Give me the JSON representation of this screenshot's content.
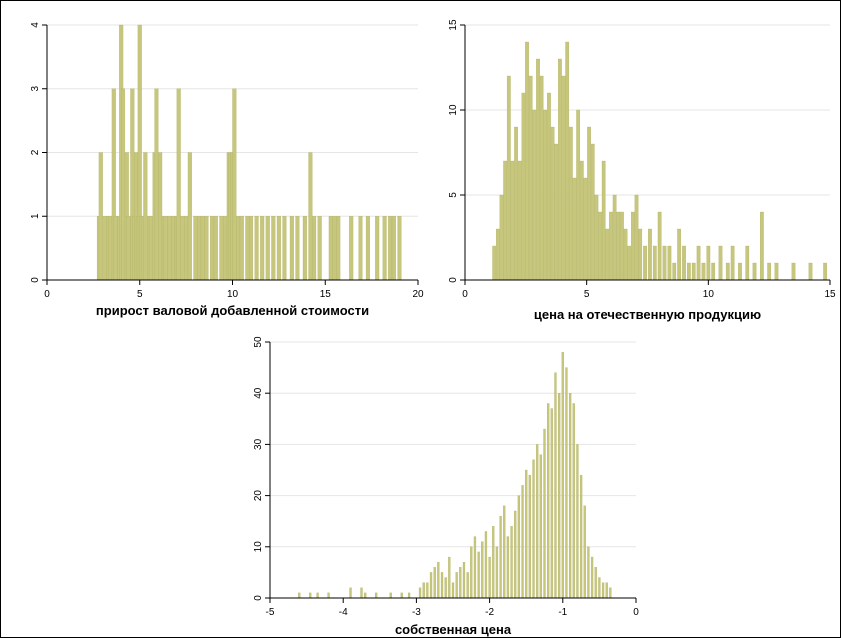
{
  "chart_data": [
    {
      "type": "bar",
      "xlabel": "прирост валовой добавленной стоимости",
      "ylabel": "",
      "xlim": [
        0,
        20
      ],
      "ylim": [
        0,
        4
      ],
      "xticks": [
        "0",
        "5",
        "10",
        "15",
        "20"
      ],
      "yticks": [
        "0",
        "1",
        "2",
        "3",
        "4"
      ],
      "bin_width": 0.2,
      "x": [
        2.8,
        2.9,
        3.1,
        3.3,
        3.4,
        3.6,
        3.7,
        3.9,
        4.0,
        4.1,
        4.3,
        4.4,
        4.6,
        4.7,
        4.8,
        4.9,
        5.0,
        5.1,
        5.2,
        5.3,
        5.5,
        5.6,
        5.8,
        5.9,
        6.1,
        6.3,
        6.4,
        6.6,
        6.8,
        7.0,
        7.1,
        7.3,
        7.5,
        7.7,
        8.0,
        8.2,
        8.4,
        8.6,
        8.9,
        9.1,
        9.4,
        9.6,
        9.8,
        9.9,
        10.0,
        10.1,
        10.3,
        10.5,
        10.8,
        11.0,
        11.3,
        11.6,
        11.9,
        12.2,
        12.5,
        12.8,
        13.2,
        13.5,
        13.9,
        14.2,
        14.4,
        14.7,
        15.3,
        15.5,
        15.7,
        16.4,
        16.9,
        17.3,
        17.8,
        18.2,
        18.5,
        18.7,
        19.0
      ],
      "values": [
        1,
        2,
        1,
        1,
        1,
        3,
        1,
        1,
        4,
        3,
        2,
        1,
        3,
        1,
        2,
        1,
        4,
        1,
        1,
        2,
        1,
        1,
        2,
        3,
        2,
        1,
        1,
        1,
        1,
        1,
        3,
        1,
        1,
        2,
        1,
        1,
        1,
        1,
        1,
        1,
        1,
        1,
        2,
        2,
        2,
        3,
        1,
        1,
        1,
        1,
        1,
        1,
        1,
        1,
        1,
        1,
        1,
        1,
        1,
        2,
        1,
        1,
        1,
        1,
        1,
        1,
        1,
        1,
        1,
        1,
        1,
        1,
        1
      ]
    },
    {
      "type": "bar",
      "xlabel": "цена на отечественную продукцию",
      "ylabel": "",
      "xlim": [
        0,
        15
      ],
      "ylim": [
        0,
        15
      ],
      "xticks": [
        "0",
        "5",
        "10",
        "15"
      ],
      "yticks": [
        "0",
        "5",
        "10",
        "15"
      ],
      "bin_width": 0.14,
      "x": [
        1.2,
        1.35,
        1.5,
        1.65,
        1.8,
        1.95,
        2.1,
        2.25,
        2.4,
        2.55,
        2.7,
        2.85,
        3.0,
        3.15,
        3.3,
        3.45,
        3.6,
        3.75,
        3.9,
        4.05,
        4.2,
        4.35,
        4.5,
        4.65,
        4.8,
        4.95,
        5.1,
        5.25,
        5.4,
        5.55,
        5.7,
        5.85,
        6.0,
        6.15,
        6.3,
        6.45,
        6.6,
        6.75,
        6.9,
        7.05,
        7.2,
        7.4,
        7.6,
        7.8,
        8.0,
        8.2,
        8.4,
        8.6,
        8.8,
        9.0,
        9.2,
        9.4,
        9.6,
        9.8,
        10.0,
        10.2,
        10.5,
        10.8,
        11.0,
        11.3,
        11.6,
        11.9,
        12.2,
        12.5,
        12.8,
        13.5,
        14.2,
        14.8
      ],
      "values": [
        2,
        3,
        5,
        7,
        12,
        7,
        9,
        7,
        11,
        14,
        12,
        10,
        13,
        12,
        10,
        11,
        9,
        8,
        13,
        12,
        14,
        9,
        6,
        10,
        7,
        6,
        9,
        8,
        5,
        4,
        7,
        3,
        4,
        5,
        4,
        4,
        3,
        2,
        4,
        5,
        3,
        2,
        3,
        2,
        4,
        2,
        2,
        1,
        3,
        2,
        1,
        1,
        2,
        1,
        2,
        1,
        2,
        1,
        2,
        1,
        2,
        1,
        4,
        1,
        1,
        1,
        1,
        1
      ]
    },
    {
      "type": "bar",
      "xlabel": "собственная цена",
      "ylabel": "",
      "xlim": [
        -5,
        0
      ],
      "ylim": [
        0,
        50
      ],
      "xticks": [
        "-5",
        "-4",
        "-3",
        "-2",
        "-1",
        "0"
      ],
      "yticks": [
        "0",
        "10",
        "20",
        "30",
        "40",
        "50"
      ],
      "bin_width": 0.027,
      "x": [
        -4.6,
        -4.45,
        -4.35,
        -4.2,
        -3.9,
        -3.75,
        -3.7,
        -3.55,
        -3.35,
        -3.2,
        -3.1,
        -2.95,
        -2.9,
        -2.85,
        -2.8,
        -2.75,
        -2.7,
        -2.65,
        -2.6,
        -2.55,
        -2.5,
        -2.45,
        -2.4,
        -2.35,
        -2.3,
        -2.25,
        -2.2,
        -2.15,
        -2.1,
        -2.05,
        -2.0,
        -1.95,
        -1.9,
        -1.85,
        -1.8,
        -1.75,
        -1.7,
        -1.65,
        -1.6,
        -1.55,
        -1.5,
        -1.45,
        -1.4,
        -1.35,
        -1.3,
        -1.25,
        -1.2,
        -1.15,
        -1.1,
        -1.05,
        -1.0,
        -0.95,
        -0.9,
        -0.85,
        -0.8,
        -0.75,
        -0.7,
        -0.65,
        -0.6,
        -0.55,
        -0.5,
        -0.45,
        -0.4,
        -0.35
      ],
      "values": [
        1,
        1,
        1,
        1,
        2,
        2,
        1,
        1,
        1,
        1,
        1,
        2,
        3,
        3,
        5,
        6,
        7,
        5,
        4,
        8,
        3,
        5,
        6,
        7,
        5,
        10,
        12,
        9,
        11,
        13,
        8,
        14,
        10,
        16,
        18,
        12,
        14,
        17,
        20,
        22,
        25,
        24,
        27,
        30,
        28,
        33,
        38,
        37,
        44,
        40,
        48,
        45,
        40,
        38,
        30,
        24,
        18,
        10,
        8,
        6,
        4,
        3,
        3,
        2
      ]
    }
  ]
}
